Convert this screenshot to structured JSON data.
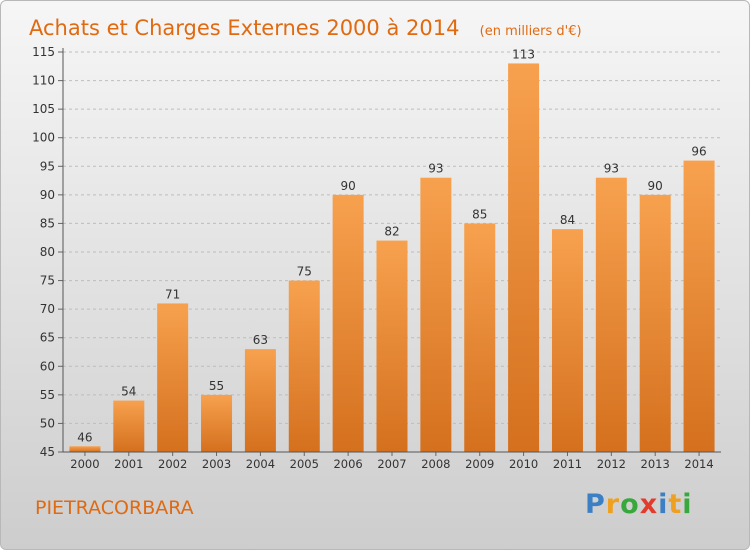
{
  "header": {
    "title": "Achats et Charges Externes 2000 à 2014",
    "subtitle": "(en milliers d'€)"
  },
  "footer": {
    "commune": "PIETRACORBARA",
    "logo_letters": [
      "P",
      "r",
      "o",
      "x",
      "i",
      "t",
      "i"
    ],
    "logo_colors": [
      "#3d7fc4",
      "#f0a020",
      "#39a83c",
      "#e23b2e",
      "#3d7fc4",
      "#f0a020",
      "#39a83c"
    ]
  },
  "chart_data": {
    "type": "bar",
    "categories": [
      "2000",
      "2001",
      "2002",
      "2003",
      "2004",
      "2005",
      "2006",
      "2007",
      "2008",
      "2009",
      "2010",
      "2011",
      "2012",
      "2013",
      "2014"
    ],
    "values": [
      46,
      54,
      71,
      55,
      63,
      75,
      90,
      82,
      93,
      85,
      113,
      84,
      93,
      90,
      96
    ],
    "ylim": [
      45,
      115
    ],
    "yticks": [
      45,
      50,
      55,
      60,
      65,
      70,
      75,
      80,
      85,
      90,
      95,
      100,
      105,
      110,
      115
    ],
    "grid": true,
    "bar_color_top": "#f7a14e",
    "bar_color_bottom": "#d4701e"
  }
}
